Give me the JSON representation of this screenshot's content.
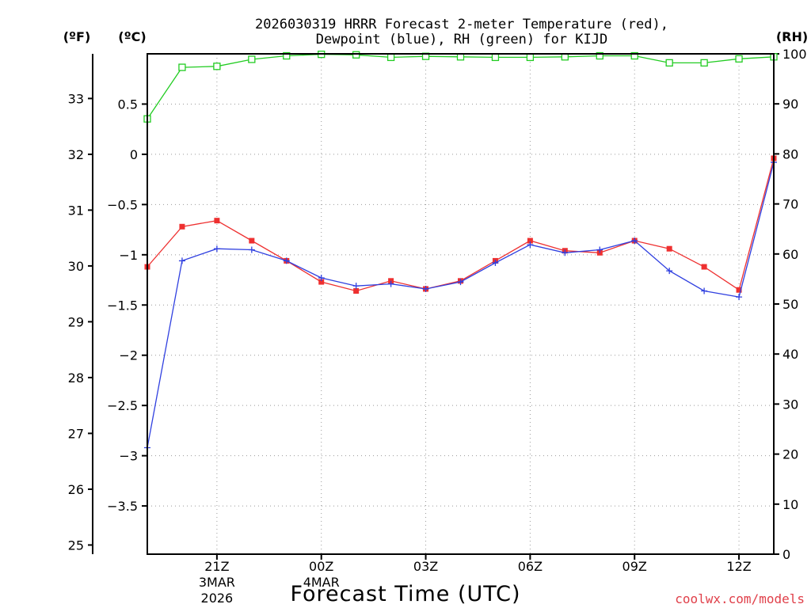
{
  "chart_data": {
    "type": "line",
    "title_line1": "2026030319 HRRR Forecast 2-meter Temperature (red),",
    "title_line2": "Dewpoint (blue), RH (green) for KIJD",
    "units": {
      "fahrenheit": "(ºF)",
      "celsius": "(ºC)",
      "rh": "(RH)"
    },
    "xlabel": "Forecast Time (UTC)",
    "credit": "coolwx.com/models",
    "x_hours": [
      19,
      20,
      21,
      22,
      23,
      24,
      25,
      26,
      27,
      28,
      29,
      30,
      31,
      32,
      33,
      34,
      35,
      36,
      37
    ],
    "xlim": [
      19,
      37
    ],
    "x_ticks": [
      {
        "hour": 21,
        "label": "21Z",
        "date1": "3MAR",
        "date2": "2026"
      },
      {
        "hour": 24,
        "label": "00Z",
        "date1": "4MAR",
        "date2": ""
      },
      {
        "hour": 27,
        "label": "03Z",
        "date1": "",
        "date2": ""
      },
      {
        "hour": 30,
        "label": "06Z",
        "date1": "",
        "date2": ""
      },
      {
        "hour": 33,
        "label": "09Z",
        "date1": "",
        "date2": ""
      },
      {
        "hour": 36,
        "label": "12Z",
        "date1": "",
        "date2": ""
      }
    ],
    "y_celsius": {
      "ylim": [
        -3.98,
        1.0
      ],
      "ticks": [
        0.5,
        0,
        -0.5,
        -1,
        -1.5,
        -2,
        -2.5,
        -3,
        -3.5
      ],
      "tick_labels": [
        "0.5",
        "0",
        "−0.5",
        "−1",
        "−1.5",
        "−2",
        "−2.5",
        "−3",
        "−3.5"
      ]
    },
    "y_fahrenheit": {
      "ticks": [
        33,
        32,
        31,
        30,
        29,
        28,
        27,
        26,
        25
      ],
      "tick_labels": [
        "33",
        "32",
        "31",
        "30",
        "29",
        "28",
        "27",
        "26",
        "25"
      ]
    },
    "y_rh": {
      "ylim": [
        0,
        100
      ],
      "ticks": [
        100,
        90,
        80,
        70,
        60,
        50,
        40,
        30,
        20,
        10,
        0
      ],
      "tick_labels": [
        "100",
        "90",
        "80",
        "70",
        "60",
        "50",
        "40",
        "30",
        "20",
        "10",
        "0"
      ]
    },
    "series": [
      {
        "name": "2-meter Temperature",
        "axis": "celsius",
        "color": "#ee3030",
        "marker": "square-filled",
        "values": [
          -1.12,
          -0.72,
          -0.66,
          -0.86,
          -1.06,
          -1.27,
          -1.36,
          -1.26,
          -1.34,
          -1.26,
          -1.06,
          -0.86,
          -0.96,
          -0.98,
          -0.86,
          -0.94,
          -1.12,
          -1.35,
          -0.04
        ]
      },
      {
        "name": "Dewpoint",
        "axis": "celsius",
        "color": "#3040e0",
        "marker": "plus",
        "values": [
          -2.92,
          -1.06,
          -0.94,
          -0.95,
          -1.06,
          -1.23,
          -1.31,
          -1.29,
          -1.34,
          -1.27,
          -1.08,
          -0.9,
          -0.98,
          -0.95,
          -0.86,
          -1.16,
          -1.36,
          -1.42,
          -0.08
        ]
      },
      {
        "name": "RH",
        "axis": "rh",
        "color": "#22cc22",
        "marker": "square-open",
        "values": [
          87,
          97.3,
          97.5,
          98.9,
          99.6,
          99.9,
          99.8,
          99.3,
          99.5,
          99.4,
          99.3,
          99.3,
          99.4,
          99.6,
          99.6,
          98.2,
          98.2,
          99.0,
          99.4
        ]
      }
    ]
  }
}
